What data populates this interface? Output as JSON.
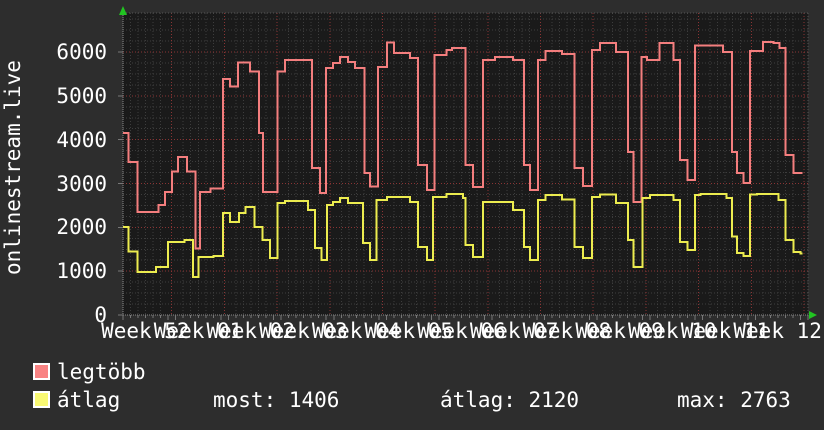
{
  "title": "onlinestream.live",
  "colors": {
    "outer_bg": "#2d2d2d",
    "plot_bg": "#1a1a1a",
    "grid_minor": "#3d3d3d",
    "grid_major": "#8a3434",
    "border": "#555555",
    "axis": "#8a8a8a",
    "tick": "#777777",
    "arrow_green": "#21c421",
    "text": "#ffffff",
    "series_max_line": "#f47e7e",
    "series_avg_line": "#ecec4f",
    "legend_max_swatch": "#f98383",
    "legend_avg_swatch": "#f9f973"
  },
  "legend": [
    {
      "label": "legtöbb",
      "swatch": "#f98383"
    },
    {
      "label": "átlag",
      "swatch": "#f9f973"
    }
  ],
  "stats": {
    "most": "most: 1406",
    "atlag": "átlag: 2120",
    "max": "max: 2763"
  },
  "chart_data": {
    "type": "line",
    "step": true,
    "title": "onlinestream.live",
    "ylabel": "onlinestream.live",
    "xlabel": "",
    "grid": true,
    "legend_position": "bottom-left",
    "ylim": [
      0,
      6890
    ],
    "xlim": [
      0,
      91
    ],
    "x_unit": "days",
    "week_start_day": 6.47,
    "yticks": [
      0,
      1000,
      2000,
      3000,
      4000,
      5000,
      6000
    ],
    "xlabels": [
      "Week 52",
      "Week 01",
      "Week 02",
      "Week 03",
      "Week 04",
      "Week 05",
      "Week 06",
      "Week 07",
      "Week 08",
      "Week 09",
      "Week 10",
      "Week 11",
      "Week 12"
    ],
    "series": [
      {
        "name": "legtöbb",
        "color": "#f47e7e",
        "points": [
          [
            0,
            4150
          ],
          [
            0.7,
            3490
          ],
          [
            1.9,
            2350
          ],
          [
            4.7,
            2510
          ],
          [
            5.6,
            2810
          ],
          [
            6.5,
            3270
          ],
          [
            7.3,
            3610
          ],
          [
            8.5,
            3270
          ],
          [
            9.6,
            1520
          ],
          [
            10.2,
            2810
          ],
          [
            11.6,
            2890
          ],
          [
            13.3,
            5385
          ],
          [
            14.2,
            5210
          ],
          [
            15.3,
            5755
          ],
          [
            16.9,
            5550
          ],
          [
            18.1,
            4150
          ],
          [
            18.6,
            2810
          ],
          [
            20.5,
            5550
          ],
          [
            21.5,
            5820
          ],
          [
            25.1,
            3350
          ],
          [
            26.2,
            2780
          ],
          [
            27.0,
            5630
          ],
          [
            27.9,
            5750
          ],
          [
            28.8,
            5890
          ],
          [
            29.9,
            5775
          ],
          [
            30.8,
            5630
          ],
          [
            32.1,
            3240
          ],
          [
            32.8,
            2930
          ],
          [
            33.9,
            5660
          ],
          [
            35.1,
            6220
          ],
          [
            36.0,
            5980
          ],
          [
            38.1,
            5860
          ],
          [
            39.2,
            3420
          ],
          [
            40.4,
            2850
          ],
          [
            41.4,
            5930
          ],
          [
            43.0,
            6045
          ],
          [
            43.7,
            6090
          ],
          [
            45.5,
            3420
          ],
          [
            46.5,
            2920
          ],
          [
            47.8,
            5820
          ],
          [
            49.4,
            5885
          ],
          [
            51.8,
            5820
          ],
          [
            53.3,
            3420
          ],
          [
            54.1,
            2850
          ],
          [
            55.1,
            5820
          ],
          [
            56.1,
            6025
          ],
          [
            58.3,
            5955
          ],
          [
            60.0,
            3350
          ],
          [
            61.1,
            2945
          ],
          [
            62.3,
            6045
          ],
          [
            63.4,
            6200
          ],
          [
            65.5,
            6000
          ],
          [
            67.1,
            3720
          ],
          [
            67.8,
            2580
          ],
          [
            68.9,
            5890
          ],
          [
            69.6,
            5820
          ],
          [
            71.3,
            6200
          ],
          [
            73.1,
            5820
          ],
          [
            74.0,
            3535
          ],
          [
            75.0,
            3080
          ],
          [
            76.0,
            6150
          ],
          [
            79.7,
            6000
          ],
          [
            80.9,
            3720
          ],
          [
            81.6,
            3240
          ],
          [
            82.4,
            3010
          ],
          [
            83.3,
            6025
          ],
          [
            85.0,
            6230
          ],
          [
            86.4,
            6200
          ],
          [
            87.2,
            6090
          ],
          [
            88.0,
            3650
          ],
          [
            89.1,
            3240
          ],
          [
            90.3,
            3240
          ]
        ]
      },
      {
        "name": "átlag",
        "color": "#ecec4f",
        "points": [
          [
            0,
            2010
          ],
          [
            0.7,
            1450
          ],
          [
            1.9,
            980
          ],
          [
            4.4,
            1100
          ],
          [
            6.0,
            1670
          ],
          [
            8.2,
            1710
          ],
          [
            9.3,
            870
          ],
          [
            10.0,
            1325
          ],
          [
            12.0,
            1345
          ],
          [
            13.3,
            2330
          ],
          [
            14.2,
            2120
          ],
          [
            15.4,
            2325
          ],
          [
            16.3,
            2465
          ],
          [
            17.5,
            2010
          ],
          [
            18.5,
            1710
          ],
          [
            19.5,
            1300
          ],
          [
            20.5,
            2550
          ],
          [
            21.5,
            2600
          ],
          [
            24.6,
            2400
          ],
          [
            25.5,
            1530
          ],
          [
            26.4,
            1255
          ],
          [
            27.1,
            2510
          ],
          [
            27.9,
            2580
          ],
          [
            28.8,
            2670
          ],
          [
            29.9,
            2550
          ],
          [
            31.9,
            1640
          ],
          [
            32.8,
            1255
          ],
          [
            33.7,
            2620
          ],
          [
            35.1,
            2690
          ],
          [
            38.1,
            2580
          ],
          [
            39.2,
            1550
          ],
          [
            40.4,
            1255
          ],
          [
            41.2,
            2690
          ],
          [
            43.0,
            2755
          ],
          [
            45.2,
            2670
          ],
          [
            45.5,
            1595
          ],
          [
            46.5,
            1325
          ],
          [
            47.8,
            2580
          ],
          [
            51.8,
            2400
          ],
          [
            53.3,
            1550
          ],
          [
            54.1,
            1255
          ],
          [
            55.1,
            2620
          ],
          [
            56.1,
            2740
          ],
          [
            58.3,
            2640
          ],
          [
            60.0,
            1550
          ],
          [
            61.1,
            1300
          ],
          [
            62.3,
            2690
          ],
          [
            63.4,
            2750
          ],
          [
            65.5,
            2550
          ],
          [
            67.1,
            1710
          ],
          [
            67.8,
            1095
          ],
          [
            69.0,
            2670
          ],
          [
            70.0,
            2740
          ],
          [
            73.1,
            2620
          ],
          [
            74.0,
            1665
          ],
          [
            75.0,
            1480
          ],
          [
            76.0,
            2740
          ],
          [
            76.7,
            2763
          ],
          [
            80.2,
            2670
          ],
          [
            80.9,
            1790
          ],
          [
            81.6,
            1420
          ],
          [
            82.4,
            1350
          ],
          [
            83.3,
            2750
          ],
          [
            84.2,
            2760
          ],
          [
            87.1,
            2620
          ],
          [
            88.0,
            1710
          ],
          [
            89.1,
            1435
          ],
          [
            90.0,
            1406
          ],
          [
            90.3,
            1406
          ]
        ]
      }
    ],
    "stats_line": {
      "most": 1406,
      "atlag": 2120,
      "max": 2763
    }
  }
}
